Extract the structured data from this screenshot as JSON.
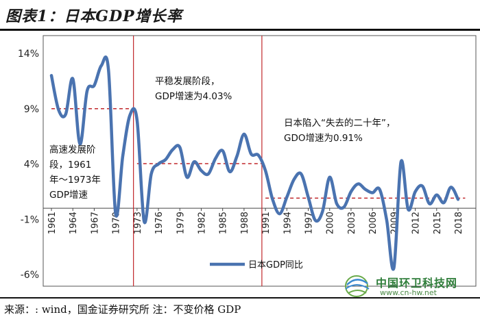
{
  "title": "图表1：日本GDP增长率",
  "source": "来源：: wind，国金证券研究所 注：不变价格 GDP",
  "watermark": {
    "name": "中国环卫科技网",
    "url": "www.cn-hw.net"
  },
  "chart_data": {
    "type": "line",
    "ylim": [
      -6,
      14
    ],
    "yticks": [
      "14%",
      "9%",
      "4%",
      "-1%",
      "-6%"
    ],
    "ytick_values": [
      14,
      9,
      4,
      -1,
      -6
    ],
    "xtick_labels": [
      "1961",
      "1964",
      "1967",
      "1970",
      "1973",
      "1976",
      "1979",
      "1982",
      "1985",
      "1988",
      "1991",
      "1994",
      "1997",
      "2000",
      "2003",
      "2006",
      "2009",
      "2012",
      "2015",
      "2018"
    ],
    "series": [
      {
        "name": "日本GDP同比",
        "color": "#4a73b0",
        "x": [
          1961,
          1962,
          1963,
          1964,
          1965,
          1966,
          1967,
          1968,
          1969,
          1970,
          1971,
          1972,
          1973,
          1974,
          1975,
          1976,
          1977,
          1978,
          1979,
          1980,
          1981,
          1982,
          1983,
          1984,
          1985,
          1986,
          1987,
          1988,
          1989,
          1990,
          1991,
          1992,
          1993,
          1994,
          1995,
          1996,
          1997,
          1998,
          1999,
          2000,
          2001,
          2002,
          2003,
          2004,
          2005,
          2006,
          2007,
          2008,
          2009,
          2010,
          2011,
          2012,
          2013,
          2014,
          2015,
          2016,
          2017,
          2018
        ],
        "values": [
          12.0,
          8.9,
          8.5,
          11.7,
          5.8,
          10.6,
          11.1,
          12.9,
          12.5,
          -0.5,
          4.7,
          8.4,
          8.0,
          -1.2,
          3.1,
          4.0,
          4.4,
          5.3,
          5.5,
          2.8,
          4.2,
          3.4,
          3.1,
          4.5,
          5.2,
          3.3,
          4.7,
          6.7,
          4.9,
          4.8,
          3.4,
          0.8,
          -0.5,
          1.0,
          2.6,
          3.1,
          1.0,
          -1.1,
          -0.3,
          2.8,
          0.4,
          0.1,
          1.5,
          2.2,
          1.7,
          1.4,
          1.7,
          -1.1,
          -5.4,
          4.2,
          -0.1,
          1.5,
          2.0,
          0.4,
          1.2,
          0.5,
          1.9,
          0.8
        ]
      }
    ],
    "reference_lines": [
      {
        "from": 1961,
        "to": 1973,
        "value": 9.0
      },
      {
        "from": 1973,
        "to": 1991,
        "value": 4.03
      },
      {
        "from": 1991,
        "to": 2019,
        "value": 0.91
      }
    ],
    "dividers": [
      1972.5,
      1990.5
    ],
    "annotations": [
      {
        "lines": [
          "高速发展阶",
          "段，1961",
          "年～1973年",
          "GDP增速"
        ]
      },
      {
        "lines": [
          "平稳发展阶段，",
          "GDP增速为4.03%"
        ]
      },
      {
        "lines": [
          "日本陷入“失去的二十年”，",
          "GDO增速为0.91%"
        ]
      }
    ],
    "legend": "日本GDP同比"
  }
}
